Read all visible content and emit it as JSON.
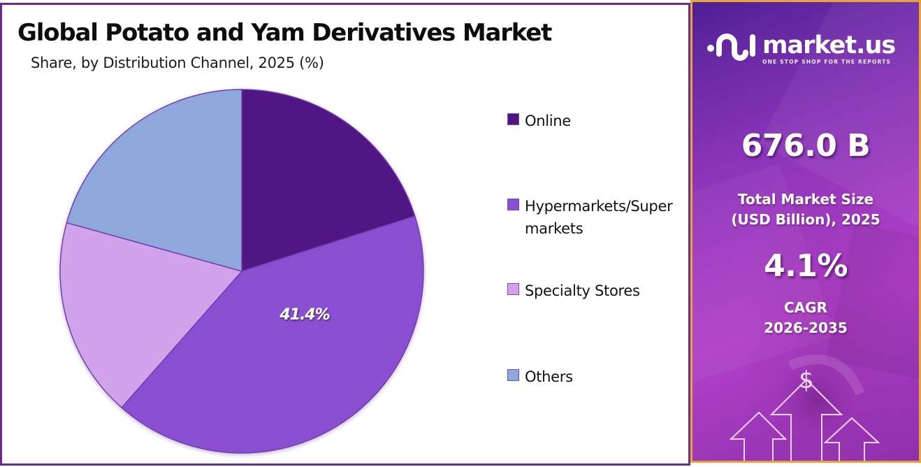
{
  "header": {
    "title": "Global Potato and Yam Derivatives Market",
    "subtitle": "Share, by Distribution Channel, 2025 (%)"
  },
  "legend": {
    "items": [
      {
        "label": "Online",
        "color": "#4f1784"
      },
      {
        "label": "Hypermarkets/Supermarkets",
        "color": "#8a4fd0"
      },
      {
        "label": "Specialty Stores",
        "color": "#d0a3ea"
      },
      {
        "label": "Others",
        "color": "#8ea8db"
      }
    ]
  },
  "pie": {
    "highlight_label": "41.4%"
  },
  "sidebar": {
    "brand": {
      "name": "market.us",
      "tagline": "ONE STOP SHOP FOR THE REPORTS"
    },
    "market_size": {
      "value": "676.0 B",
      "label_line1": "Total Market Size",
      "label_line2": "(USD Billion), 2025"
    },
    "cagr": {
      "value": "4.1%",
      "label_line1": "CAGR",
      "label_line2": "2026-2035"
    },
    "currency_symbol": "$",
    "colors": {
      "border": "#e8a33a",
      "gradient_start": "#4e1f94",
      "gradient_end": "#b040c8"
    }
  },
  "chart_data": {
    "type": "pie",
    "title": "Global Potato and Yam Derivatives Market",
    "subtitle": "Share, by Distribution Channel, 2025 (%)",
    "categories": [
      "Online",
      "Hypermarkets/Supermarkets",
      "Specialty Stores",
      "Others"
    ],
    "values": [
      20.1,
      41.4,
      17.8,
      20.7
    ],
    "colors": [
      "#4f1784",
      "#8a4fd0",
      "#d0a3ea",
      "#8ea8db"
    ],
    "data_labels": {
      "Hypermarkets/Supermarkets": "41.4%"
    },
    "start_angle": "12 o'clock, clockwise",
    "legend_position": "right",
    "unit": "%"
  }
}
